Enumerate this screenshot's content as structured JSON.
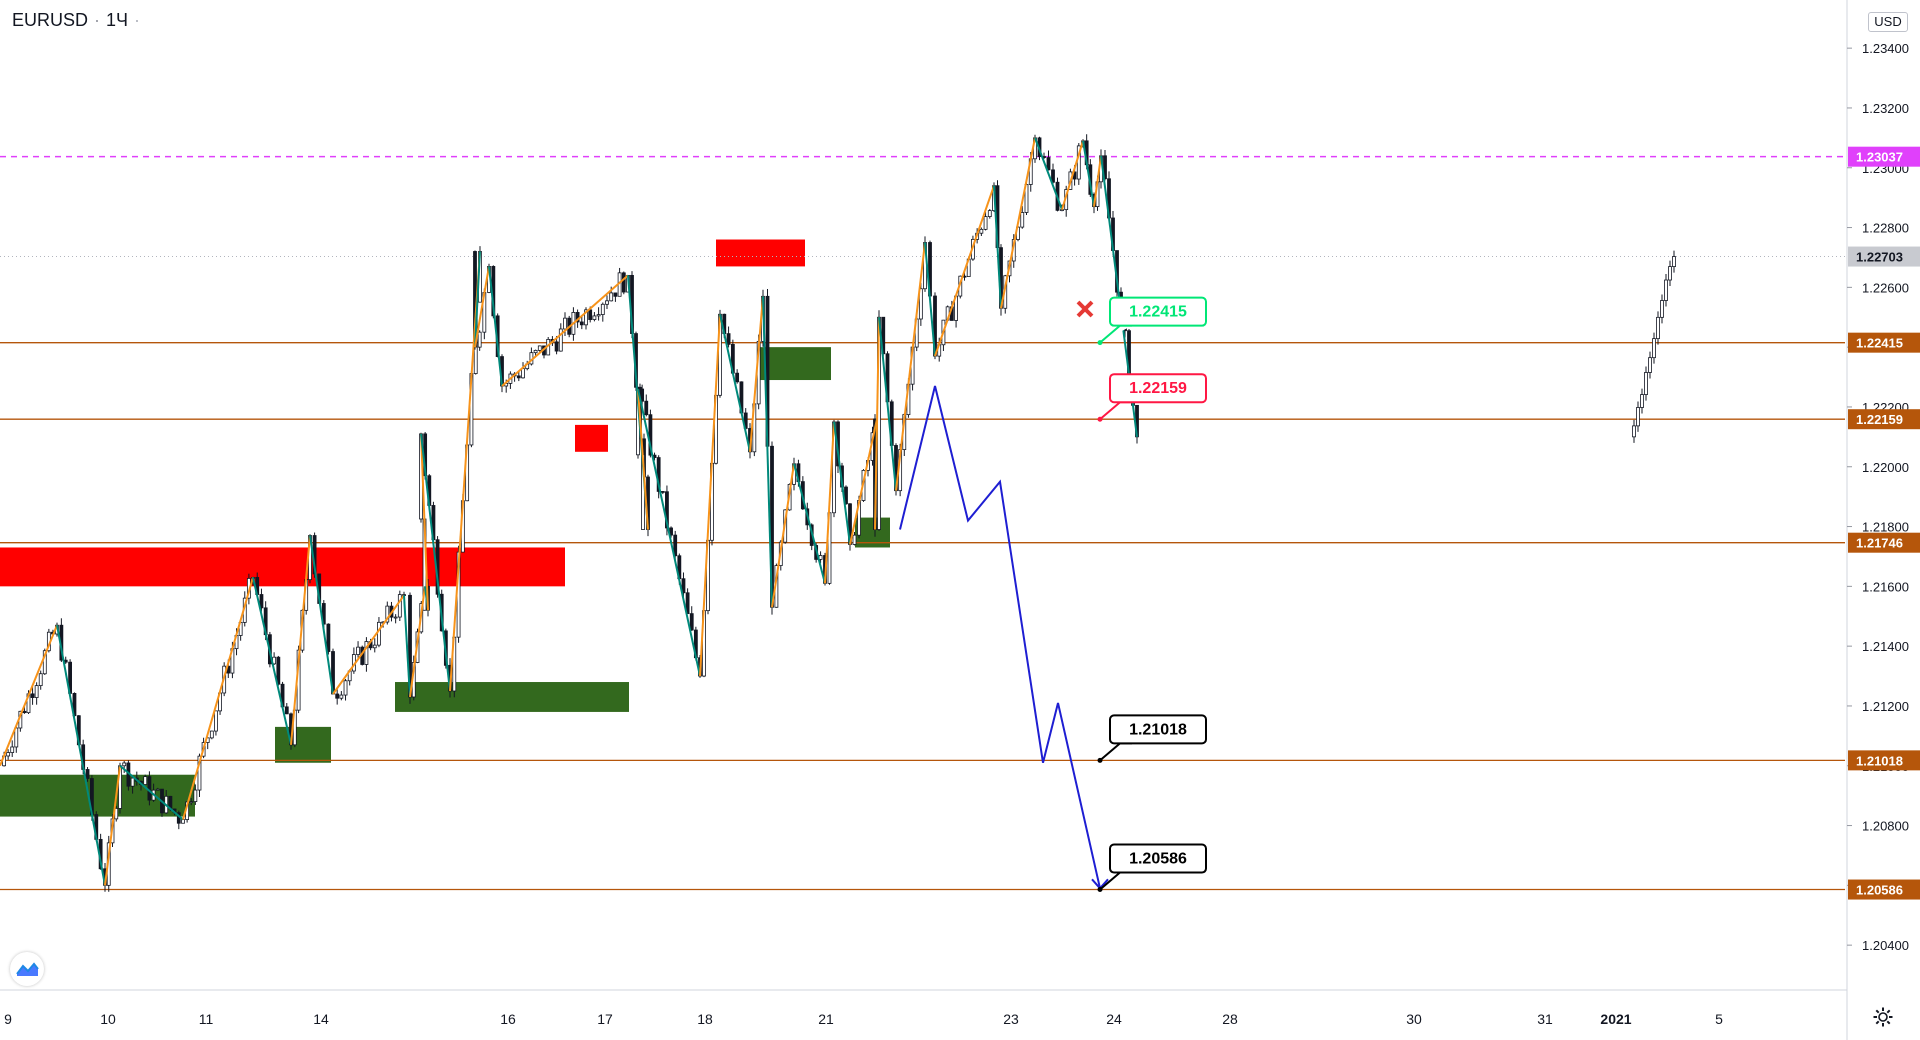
{
  "header": {
    "symbol": "EURUSD",
    "interval": "1Ч",
    "menu_dots": "·",
    "currency": "USD"
  },
  "colors": {
    "bull_line": "#f7931a",
    "bear_line": "#00897b",
    "projection": "#1e1ed2",
    "level_line": "#b5560b",
    "level_tag": "#b5560b",
    "pink_dashed": "#e040fb",
    "supply": "#ff0000",
    "demand": "#33691e",
    "candle": "#131722"
  },
  "chart_data": {
    "type": "candlestick",
    "symbol": "EURUSD",
    "interval": "1Ч",
    "ylim": [
      1.2025,
      1.2345
    ],
    "y_ticks": [
      "1.20400",
      "1.20600",
      "1.20800",
      "1.21000",
      "1.21200",
      "1.21400",
      "1.21600",
      "1.21800",
      "1.22000",
      "1.22200",
      "1.22400",
      "1.22600",
      "1.22800",
      "1.23000",
      "1.23200",
      "1.23400"
    ],
    "x_ticks": [
      "9",
      "10",
      "11",
      "14",
      "16",
      "17",
      "18",
      "21",
      "23",
      "24",
      "28",
      "30",
      "31",
      "2021",
      "5"
    ],
    "current_price": "1.22703",
    "horizontal_levels": [
      "1.22415",
      "1.22159",
      "1.21746",
      "1.21018",
      "1.20586"
    ],
    "dashed_level": "1.23037",
    "price_callouts": [
      {
        "text": "1.22415",
        "color": "#00e676",
        "status": "invalidated"
      },
      {
        "text": "1.22159",
        "color": "#ff1744"
      },
      {
        "text": "1.21018",
        "color": "#000000"
      },
      {
        "text": "1.20586",
        "color": "#000000"
      }
    ],
    "zigzag": [
      {
        "x": "9",
        "y": 1.21
      },
      {
        "x": "9",
        "y": 1.2147
      },
      {
        "x": "10",
        "y": 1.206
      },
      {
        "x": "10",
        "y": 1.21
      },
      {
        "x": "11",
        "y": 1.2082
      },
      {
        "x": "11",
        "y": 1.2163
      },
      {
        "x": "14",
        "y": 1.2107
      },
      {
        "x": "14",
        "y": 1.2177
      },
      {
        "x": "14",
        "y": 1.2124
      },
      {
        "x": "16",
        "y": 1.2157
      },
      {
        "x": "16",
        "y": 1.2123
      },
      {
        "x": "16",
        "y": 1.216
      },
      {
        "x": "16",
        "y": 1.2152
      },
      {
        "x": "16",
        "y": 1.2211
      },
      {
        "x": "17",
        "y": 1.2125
      },
      {
        "x": "18",
        "y": 1.2272
      },
      {
        "x": "18",
        "y": 1.224
      },
      {
        "x": "18",
        "y": 1.2267
      },
      {
        "x": "18",
        "y": 1.2227
      },
      {
        "x": "21",
        "y": 1.2264
      },
      {
        "x": "21",
        "y": 1.2179
      },
      {
        "x": "21",
        "y": 1.2226
      },
      {
        "x": "21",
        "y": 1.213
      },
      {
        "x": "21",
        "y": 1.2251
      },
      {
        "x": "21",
        "y": 1.2205
      },
      {
        "x": "23",
        "y": 1.2257
      },
      {
        "x": "23",
        "y": 1.2153
      },
      {
        "x": "23",
        "y": 1.2201
      },
      {
        "x": "24",
        "y": 1.2161
      },
      {
        "x": "24",
        "y": 1.2215
      },
      {
        "x": "24",
        "y": 1.2174
      },
      {
        "x": "24",
        "y": 1.2216
      },
      {
        "x": "28",
        "y": 1.2179
      },
      {
        "x": "28",
        "y": 1.225
      },
      {
        "x": "28",
        "y": 1.2192
      },
      {
        "x": "30",
        "y": 1.2275
      },
      {
        "x": "30",
        "y": 1.2237
      },
      {
        "x": "30",
        "y": 1.2294
      },
      {
        "x": "30",
        "y": 1.2253
      },
      {
        "x": "31",
        "y": 1.231
      },
      {
        "x": "31",
        "y": 1.2286
      },
      {
        "x": "31",
        "y": 1.2309
      },
      {
        "x": "31",
        "y": 1.2287
      },
      {
        "x": "31",
        "y": 1.2304
      },
      {
        "x": "2021",
        "y": 1.221
      }
    ],
    "projection_path": [
      {
        "x": "21",
        "y": 1.2179
      },
      {
        "x": "21",
        "y": 1.2227
      },
      {
        "x": "21",
        "y": 1.2182
      },
      {
        "x": "23",
        "y": 1.2195
      },
      {
        "x": "23",
        "y": 1.2101
      },
      {
        "x": "23",
        "y": 1.2121
      },
      {
        "x": "24",
        "y": 1.2059
      }
    ],
    "supply_zones": [
      {
        "from": "9",
        "to": "16",
        "y_top": 1.2173,
        "y_bottom": 1.216
      },
      {
        "from": "16",
        "to": "16",
        "y_top": 1.2214,
        "y_bottom": 1.2205
      },
      {
        "from": "18",
        "to": "18",
        "y_top": 1.2276,
        "y_bottom": 1.2267
      }
    ],
    "demand_zones": [
      {
        "from": "9",
        "to": "11",
        "y_top": 1.2097,
        "y_bottom": 1.2083
      },
      {
        "from": "11",
        "to": "14",
        "y_top": 1.2113,
        "y_bottom": 1.2101
      },
      {
        "from": "14",
        "to": "17",
        "y_top": 1.2128,
        "y_bottom": 1.2118
      },
      {
        "from": "18",
        "to": "18",
        "y_top": 1.224,
        "y_bottom": 1.2229
      },
      {
        "from": "21",
        "to": "21",
        "y_top": 1.2183,
        "y_bottom": 1.2173
      }
    ]
  }
}
